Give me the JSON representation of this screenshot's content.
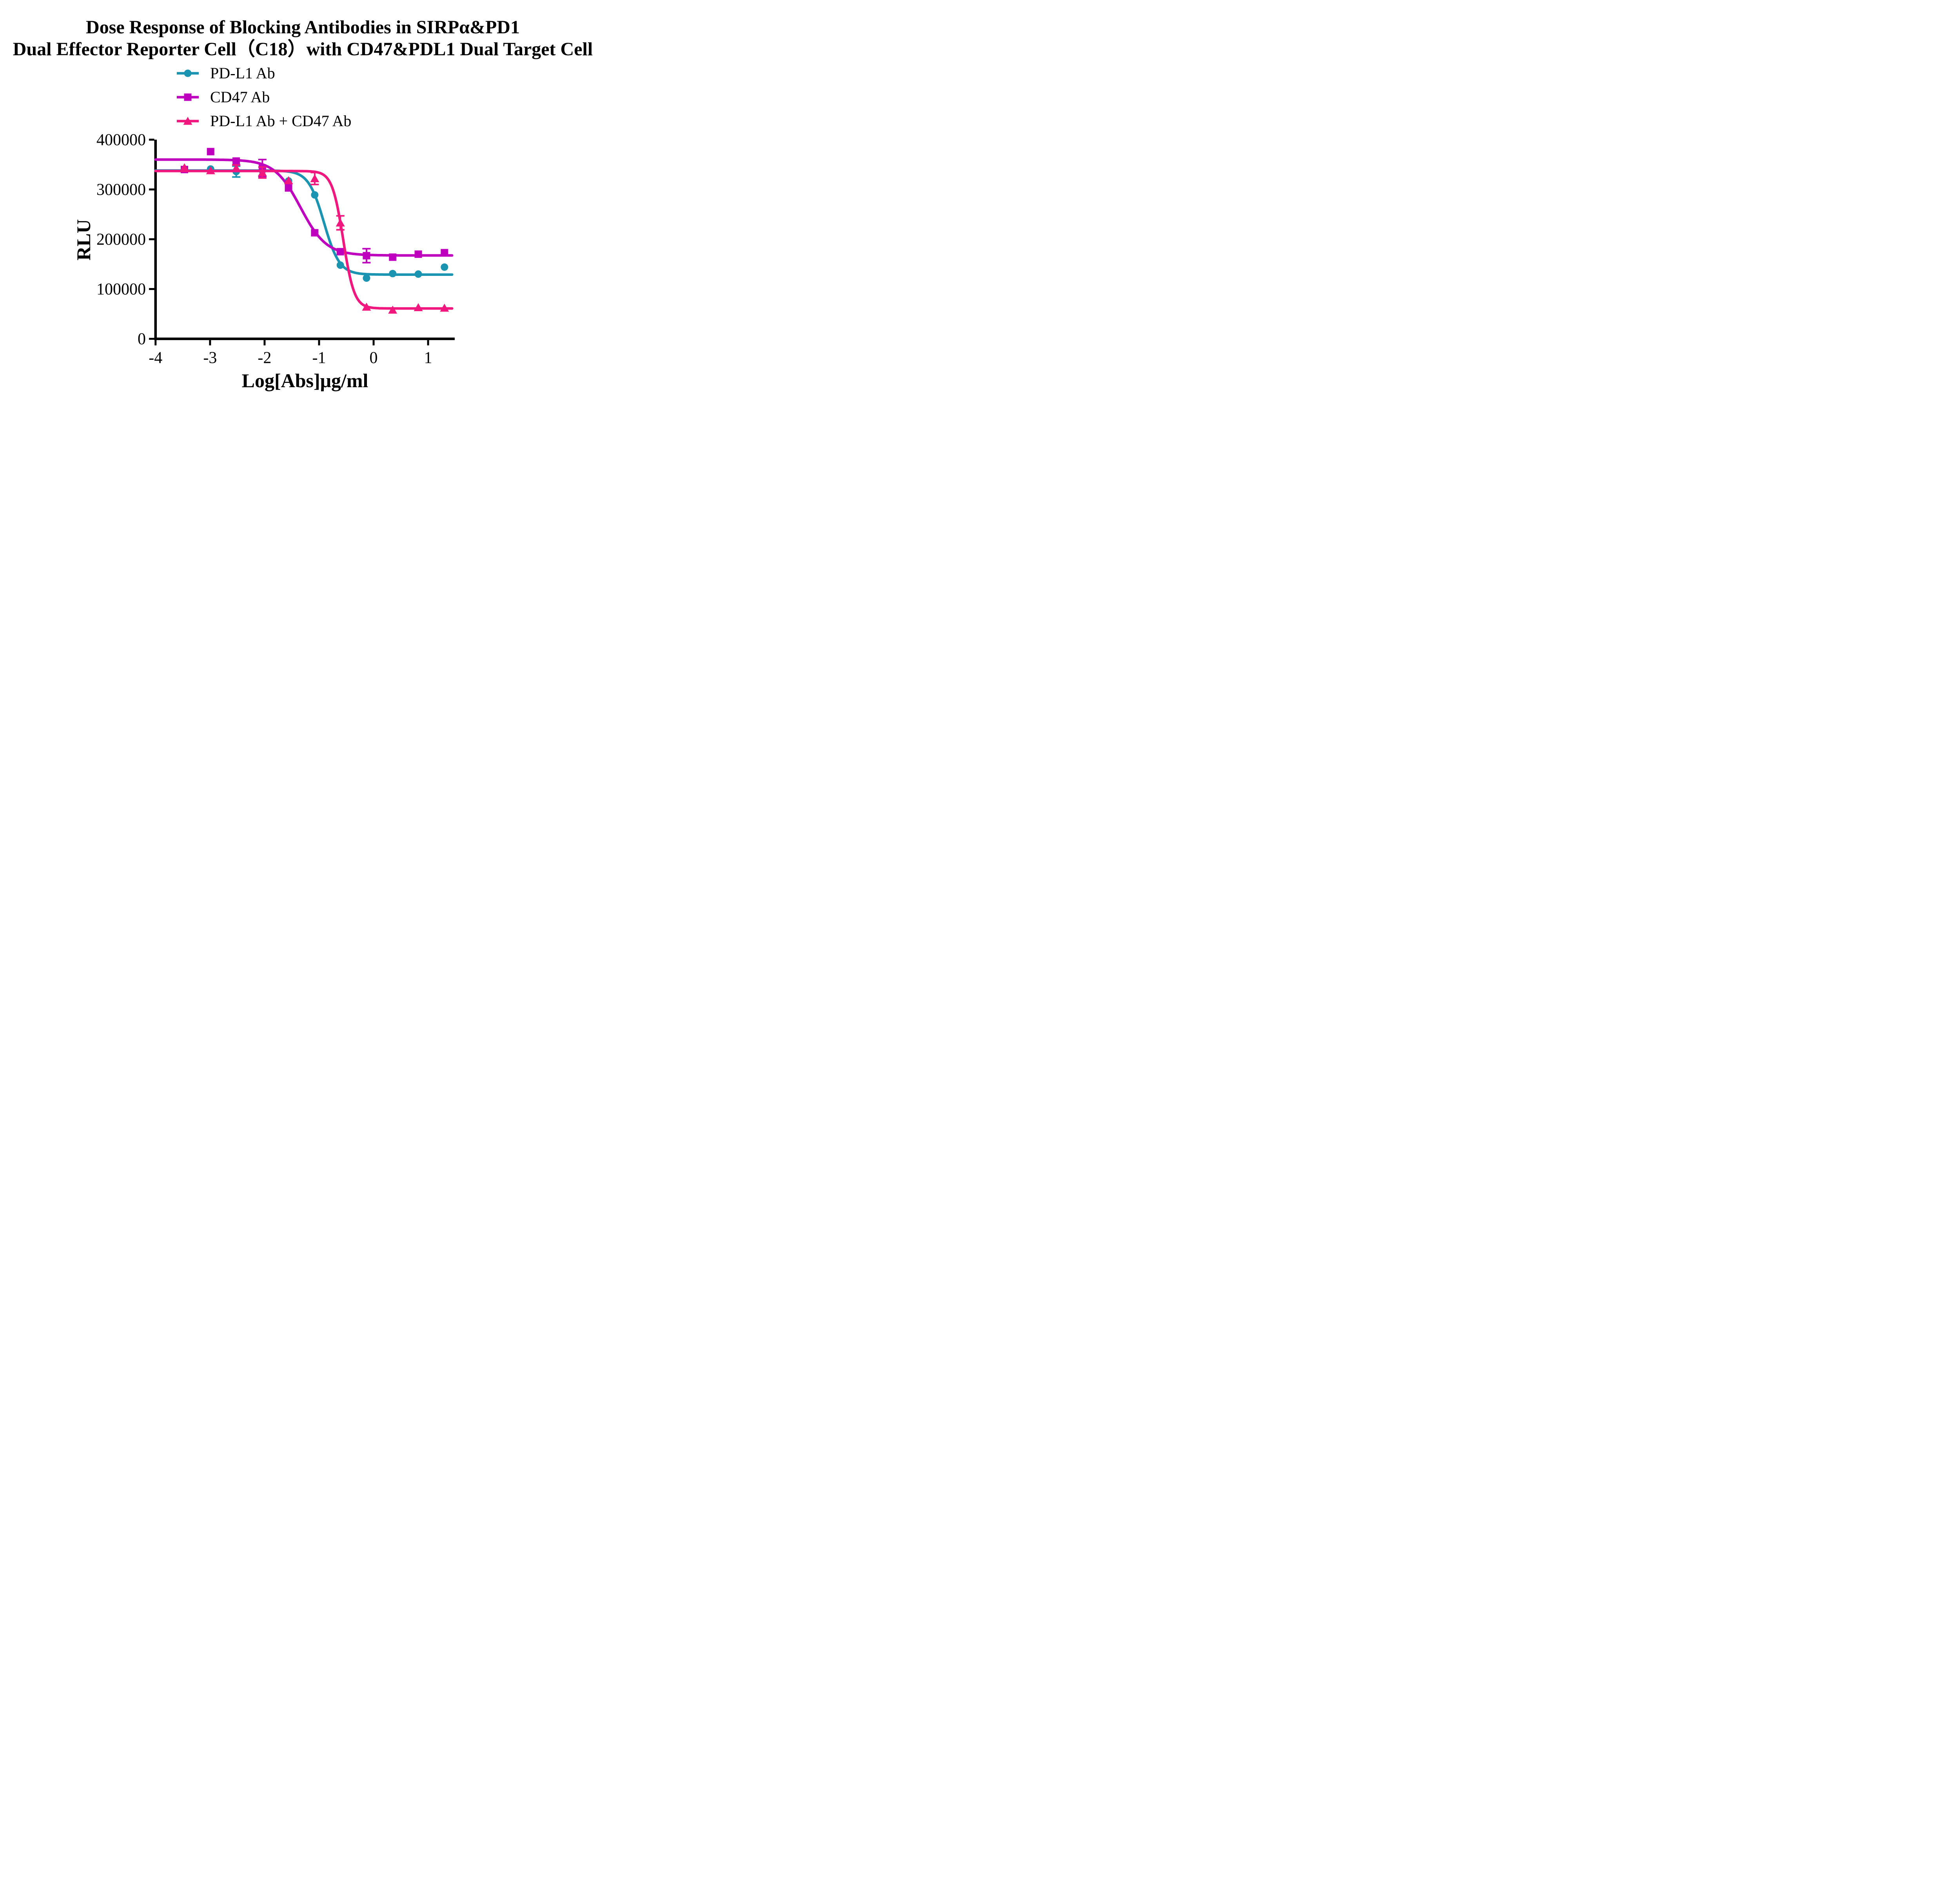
{
  "title": {
    "line1": "Dose Response of Blocking Antibodies in SIRPα&PD1",
    "line2": "Dual Effector Reporter Cell（C18）with CD47&PDL1 Dual Target Cell"
  },
  "chart_data": {
    "type": "line",
    "title": "Dose Response of Blocking Antibodies in SIRPα&PD1 Dual Effector Reporter Cell（C18）with CD47&PDL1 Dual Target Cell",
    "xlabel": "Log[Abs]μg/ml",
    "ylabel": "RLU",
    "xlim": [
      -4,
      1.5
    ],
    "ylim": [
      0,
      400000
    ],
    "x_ticks": [
      -4,
      -3,
      -2,
      -1,
      0,
      1
    ],
    "y_ticks": [
      0,
      100000,
      200000,
      300000,
      400000
    ],
    "grid": false,
    "legend_position": "above-plot-left",
    "axis_color": "#000000",
    "series": [
      {
        "name": "PD-L1 Ab",
        "marker": "circle",
        "color": "#1B94B2",
        "x": [
          -2.99,
          -2.52,
          -2.04,
          -1.56,
          -1.08,
          -0.61,
          -0.13,
          0.35,
          0.82,
          1.3
        ],
        "y": [
          341000,
          336000,
          338000,
          317000,
          289000,
          148000,
          122000,
          131000,
          130000,
          144000
        ],
        "yerr": [
          0,
          11000,
          0,
          0,
          0,
          0,
          0,
          0,
          0,
          0
        ],
        "fit": {
          "top": 338000,
          "bottom": 129000,
          "logec50": -0.91,
          "hillslope": 3.05
        }
      },
      {
        "name": "CD47 Ab",
        "marker": "square",
        "color": "#BE00BE",
        "x": [
          -3.47,
          -2.99,
          -2.52,
          -2.04,
          -1.56,
          -1.08,
          -0.61,
          -0.13,
          0.35,
          0.82,
          1.3
        ],
        "y": [
          340000,
          376000,
          357000,
          343000,
          303000,
          213000,
          175000,
          167000,
          164000,
          170000,
          173000
        ],
        "yerr": [
          0,
          0,
          0,
          17000,
          0,
          0,
          0,
          14000,
          0,
          0,
          0
        ],
        "fit": {
          "top": 360000,
          "bottom": 167500,
          "logec50": -1.34,
          "hillslope": 1.83
        }
      },
      {
        "name": "PD-L1 Ab + CD47 Ab",
        "marker": "triangle",
        "color": "#F0187E",
        "x": [
          -3.47,
          -2.99,
          -2.52,
          -2.04,
          -1.56,
          -1.08,
          -0.61,
          -0.13,
          0.35,
          0.82,
          1.3
        ],
        "y": [
          344000,
          338000,
          343000,
          334000,
          318000,
          322000,
          233000,
          64000,
          58000,
          63000,
          62000
        ],
        "yerr": [
          0,
          0,
          6000,
          11000,
          0,
          12000,
          14000,
          0,
          0,
          0,
          0
        ],
        "fit": {
          "top": 337000,
          "bottom": 61000,
          "logec50": -0.557,
          "hillslope": 4.29
        }
      }
    ]
  }
}
